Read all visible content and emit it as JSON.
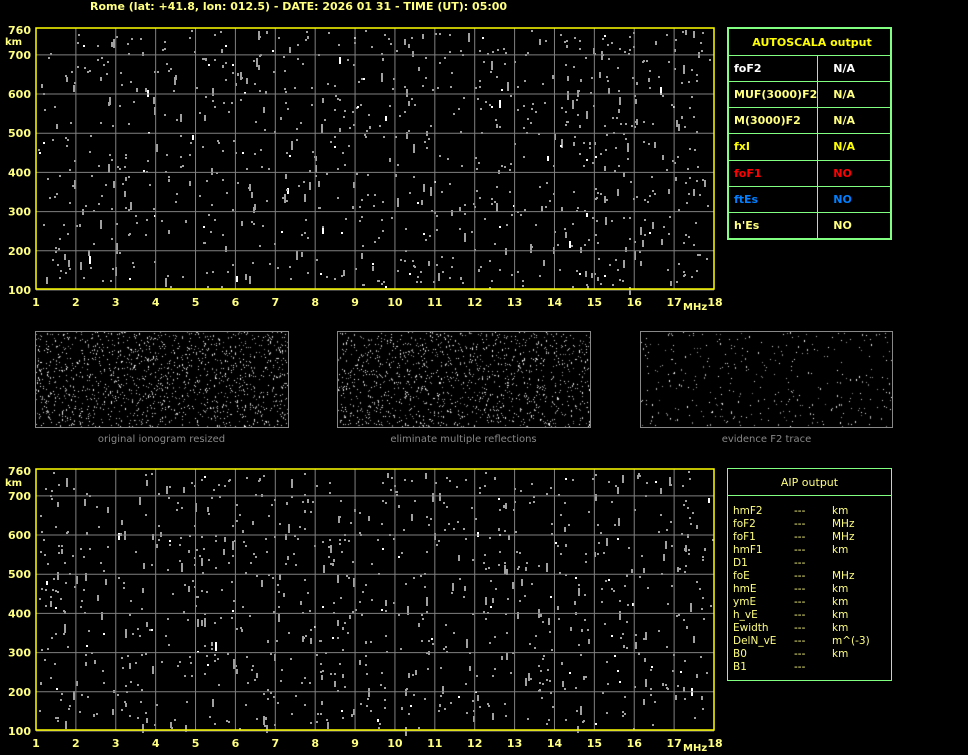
{
  "header": {
    "title": "Rome (lat: +41.8, lon: 012.5) - DATE: 2026 01 31 - TIME (UT): 05:00"
  },
  "ionogram": {
    "y_unit": "km",
    "x_unit": "MHz",
    "y_ticks": [
      "760",
      "700",
      "600",
      "500",
      "400",
      "300",
      "200",
      "100"
    ],
    "x_ticks": [
      "1",
      "2",
      "3",
      "4",
      "5",
      "6",
      "7",
      "8",
      "9",
      "10",
      "11",
      "12",
      "13",
      "14",
      "15",
      "16",
      "17",
      "18"
    ],
    "colors": {
      "frame": "#ffff00",
      "grid": "#808080",
      "noise": "#a0a0a0",
      "label": "#ffff80"
    }
  },
  "thumbnails": [
    {
      "caption": "original ionogram resized"
    },
    {
      "caption": "eliminate multiple reflections"
    },
    {
      "caption": "evidence F2 trace"
    }
  ],
  "autoscala": {
    "title": "AUTOSCALA output",
    "rows": [
      {
        "param": "foF2",
        "value": "N/A",
        "color": "#ffffff"
      },
      {
        "param": "MUF(3000)F2",
        "value": "N/A",
        "color": "#ffff80"
      },
      {
        "param": "M(3000)F2",
        "value": "N/A",
        "color": "#ffff80"
      },
      {
        "param": "fxI",
        "value": "N/A",
        "color": "#ffff00"
      },
      {
        "param": "foF1",
        "value": "NO",
        "color": "#ff0000"
      },
      {
        "param": "ftEs",
        "value": "NO",
        "color": "#0080ff"
      },
      {
        "param": "h'Es",
        "value": "NO",
        "color": "#ffff80"
      }
    ]
  },
  "aip": {
    "title": "AIP output",
    "rows": [
      {
        "param": "hmF2",
        "value": "---",
        "unit": "km"
      },
      {
        "param": "foF2",
        "value": "---",
        "unit": "MHz"
      },
      {
        "param": "foF1",
        "value": "---",
        "unit": "MHz"
      },
      {
        "param": "hmF1",
        "value": "---",
        "unit": "km"
      },
      {
        "param": "D1",
        "value": "---",
        "unit": ""
      },
      {
        "param": "foE",
        "value": "---",
        "unit": "MHz"
      },
      {
        "param": "hmE",
        "value": "---",
        "unit": "km"
      },
      {
        "param": "ymE",
        "value": "---",
        "unit": "km"
      },
      {
        "param": "h_vE",
        "value": "---",
        "unit": "km"
      },
      {
        "param": "Ewidth",
        "value": "---",
        "unit": "km"
      },
      {
        "param": "DelN_vE",
        "value": "---",
        "unit": "m^(-3)"
      },
      {
        "param": "B0",
        "value": "---",
        "unit": "km"
      },
      {
        "param": "B1",
        "value": "---",
        "unit": ""
      }
    ]
  }
}
